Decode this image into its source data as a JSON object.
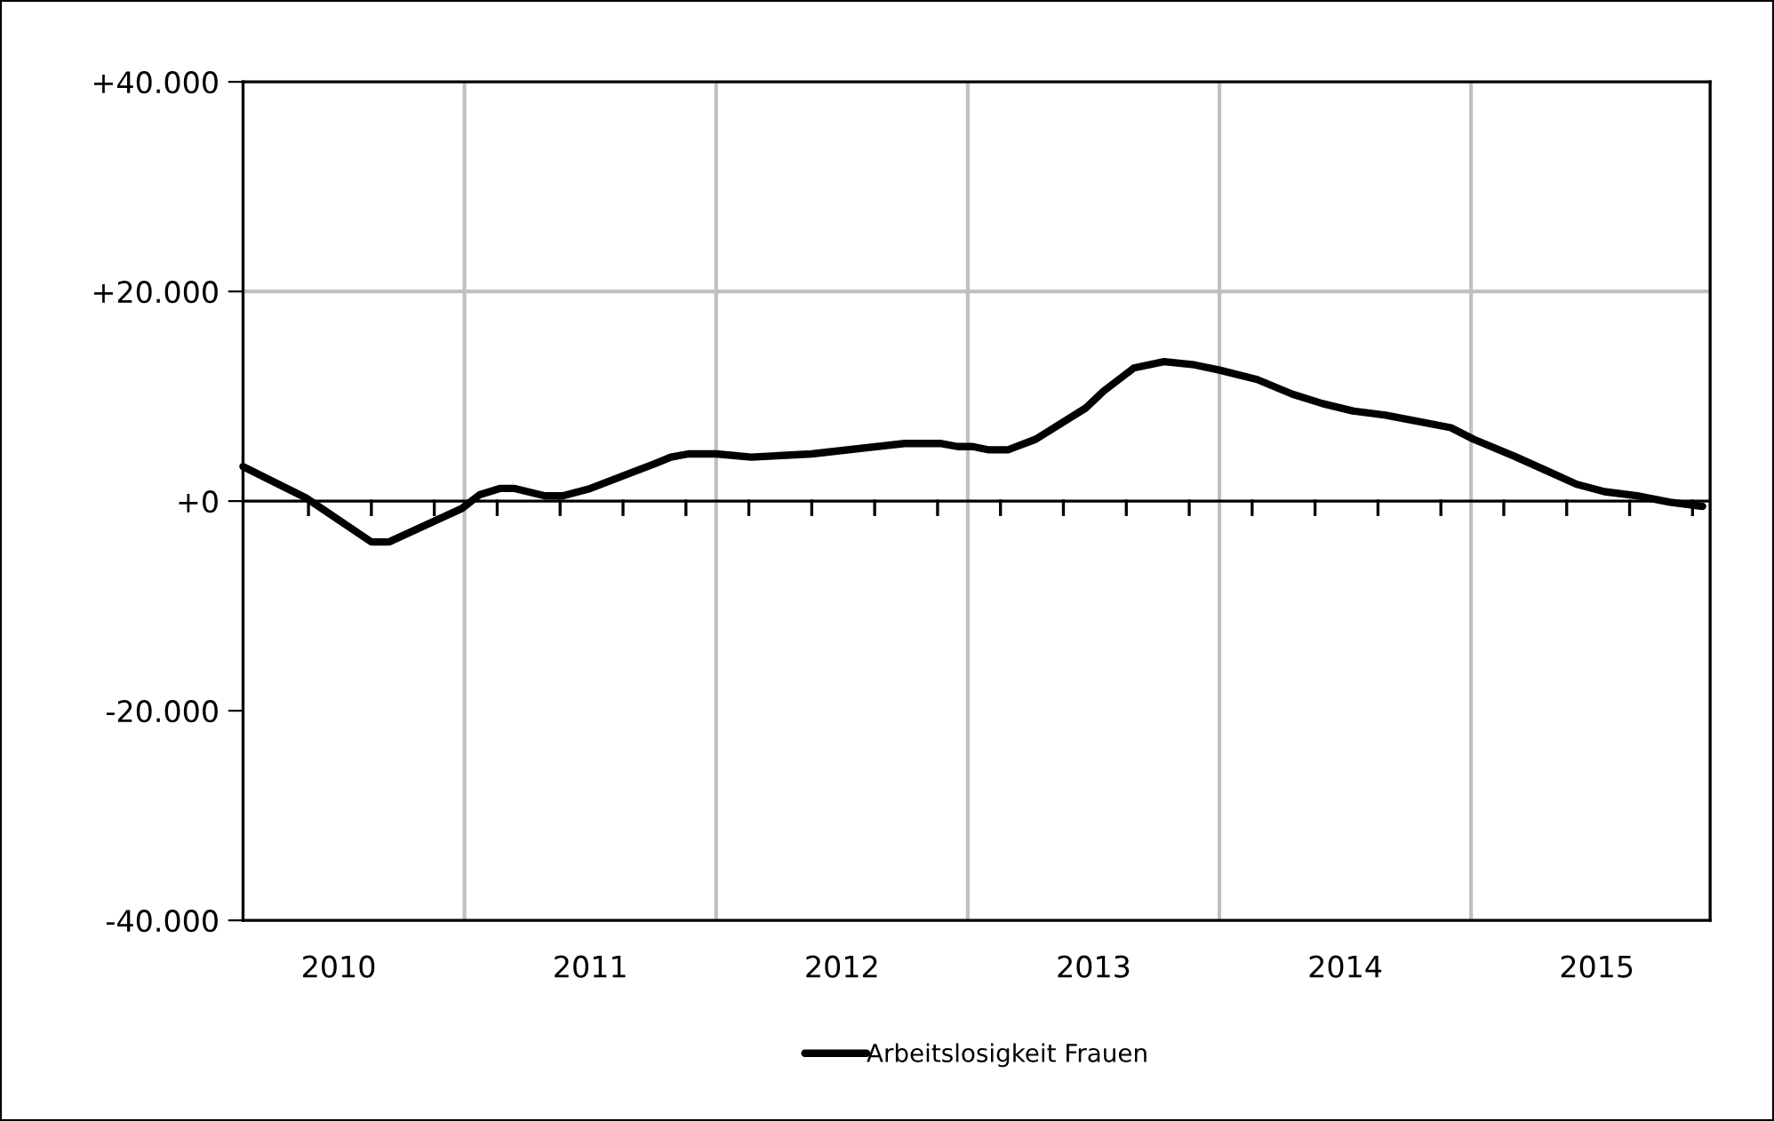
{
  "chart_data": {
    "type": "line",
    "x": [
      2010.12,
      2010.37,
      2010.63,
      2010.7,
      2010.99,
      2011.06,
      2011.14,
      2011.2,
      2011.32,
      2011.39,
      2011.5,
      2011.64,
      2011.76,
      2011.82,
      2011.89,
      2012.0,
      2012.14,
      2012.38,
      2012.75,
      2012.89,
      2012.96,
      2013.02,
      2013.08,
      2013.16,
      2013.27,
      2013.47,
      2013.54,
      2013.66,
      2013.78,
      2013.9,
      2014.0,
      2014.15,
      2014.29,
      2014.41,
      2014.53,
      2014.66,
      2014.92,
      2015.01,
      2015.17,
      2015.3,
      2015.42,
      2015.53,
      2015.66,
      2015.79,
      2015.92
    ],
    "series": [
      {
        "name": "Arbeitslosigkeit Frauen",
        "color": "#000000",
        "values": [
          3300,
          300,
          -3900,
          -3900,
          -700,
          600,
          1200,
          1200,
          500,
          500,
          1200,
          2500,
          3600,
          4200,
          4500,
          4500,
          4200,
          4500,
          5500,
          5500,
          5200,
          5200,
          4900,
          4900,
          5900,
          8900,
          10500,
          12700,
          13300,
          13000,
          12500,
          11600,
          10200,
          9300,
          8600,
          8200,
          7000,
          5900,
          4300,
          2900,
          1600,
          900,
          500,
          -100,
          -500
        ]
      }
    ],
    "xlim": [
      2010.12,
      2015.95
    ],
    "xticks": [
      {
        "value": 2010.5,
        "label": "2010"
      },
      {
        "value": 2011.5,
        "label": "2011"
      },
      {
        "value": 2012.5,
        "label": "2012"
      },
      {
        "value": 2013.5,
        "label": "2013"
      },
      {
        "value": 2014.5,
        "label": "2014"
      },
      {
        "value": 2015.5,
        "label": "2015"
      },
      {
        "value": 2010.38,
        "label": null
      },
      {
        "value": 2010.63,
        "label": null
      },
      {
        "value": 2010.88,
        "label": null
      },
      {
        "value": 2011.13,
        "label": null
      },
      {
        "value": 2011.38,
        "label": null
      },
      {
        "value": 2011.63,
        "label": null
      },
      {
        "value": 2011.88,
        "label": null
      },
      {
        "value": 2012.13,
        "label": null
      },
      {
        "value": 2012.38,
        "label": null
      },
      {
        "value": 2012.63,
        "label": null
      },
      {
        "value": 2012.88,
        "label": null
      },
      {
        "value": 2013.13,
        "label": null
      },
      {
        "value": 2013.38,
        "label": null
      },
      {
        "value": 2013.63,
        "label": null
      },
      {
        "value": 2013.88,
        "label": null
      },
      {
        "value": 2014.13,
        "label": null
      },
      {
        "value": 2014.38,
        "label": null
      },
      {
        "value": 2014.63,
        "label": null
      },
      {
        "value": 2014.88,
        "label": null
      },
      {
        "value": 2015.13,
        "label": null
      },
      {
        "value": 2015.38,
        "label": null
      },
      {
        "value": 2015.63,
        "label": null
      },
      {
        "value": 2015.88,
        "label": null
      }
    ],
    "ylim": [
      -40000,
      40000
    ],
    "yticks": [
      {
        "value": -40000,
        "label": "-40.000"
      },
      {
        "value": -20000,
        "label": "-20.000"
      },
      {
        "value": 0,
        "label": "+0"
      },
      {
        "value": 20000,
        "label": "+20.000"
      },
      {
        "value": 40000,
        "label": "+40.000"
      }
    ],
    "ref_lines": [
      {
        "axis": "y",
        "value": 0,
        "label": null,
        "color": "#000000"
      },
      {
        "axis": "y",
        "value": 20000,
        "label": null,
        "color": "#c0c0c0"
      },
      {
        "axis": "x",
        "value": 2011,
        "label": null,
        "color": "#c0c0c0"
      },
      {
        "axis": "x",
        "value": 2012,
        "label": null,
        "color": "#c0c0c0"
      },
      {
        "axis": "x",
        "value": 2013,
        "label": null,
        "color": "#c0c0c0"
      },
      {
        "axis": "x",
        "value": 2014,
        "label": null,
        "color": "#c0c0c0"
      },
      {
        "axis": "x",
        "value": 2015,
        "label": null,
        "color": "#c0c0c0"
      }
    ],
    "grid": false,
    "legend": "bottom",
    "marker": "none",
    "line_style": "solid"
  }
}
